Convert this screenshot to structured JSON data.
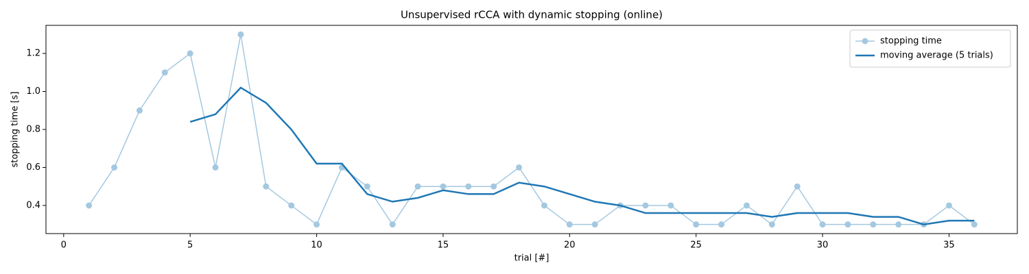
{
  "chart_data": {
    "type": "line",
    "title": "Unsupervised rCCA with dynamic stopping (online)",
    "x_label": "trial [#]",
    "y_label": "stopping time [s]",
    "x": [
      1,
      2,
      3,
      4,
      5,
      6,
      7,
      8,
      9,
      10,
      11,
      12,
      13,
      14,
      15,
      16,
      17,
      18,
      19,
      20,
      21,
      22,
      23,
      24,
      25,
      26,
      27,
      28,
      29,
      30,
      31,
      32,
      33,
      34,
      35,
      36
    ],
    "series": [
      {
        "name": "stopping time",
        "color": "#1f77b4",
        "alpha": 0.4,
        "marker": "o",
        "line_width": 1.5,
        "values": [
          0.4,
          0.6,
          0.9,
          1.1,
          1.2,
          0.6,
          1.3,
          0.5,
          0.4,
          0.3,
          0.6,
          0.5,
          0.3,
          0.5,
          0.5,
          0.5,
          0.5,
          0.6,
          0.4,
          0.3,
          0.3,
          0.4,
          0.4,
          0.4,
          0.3,
          0.3,
          0.4,
          0.3,
          0.5,
          0.3,
          0.3,
          0.3,
          0.3,
          0.3,
          0.4,
          0.3
        ]
      },
      {
        "name": "moving average (5 trials)",
        "color": "#1f77b4",
        "alpha": 1,
        "line_width": 2.5,
        "values": [
          null,
          null,
          null,
          null,
          0.84,
          0.88,
          1.02,
          0.94,
          0.8,
          0.62,
          0.62,
          0.46,
          0.42,
          0.44,
          0.48,
          0.46,
          0.46,
          0.52,
          0.5,
          0.46,
          0.42,
          0.4,
          0.36,
          0.36,
          0.36,
          0.36,
          0.36,
          0.34,
          0.36,
          0.36,
          0.36,
          0.34,
          0.34,
          0.3,
          0.32,
          0.32
        ]
      }
    ],
    "xlim": [
      -0.7,
      37.7
    ],
    "xticks": [
      0,
      5,
      10,
      15,
      20,
      25,
      30,
      35
    ],
    "ylim": [
      0.252,
      1.348
    ],
    "yticks": [
      0.4,
      0.6,
      0.8,
      {
        "value": 1,
        "label": "1.0"
      },
      1.2
    ],
    "legend": "upper right"
  }
}
